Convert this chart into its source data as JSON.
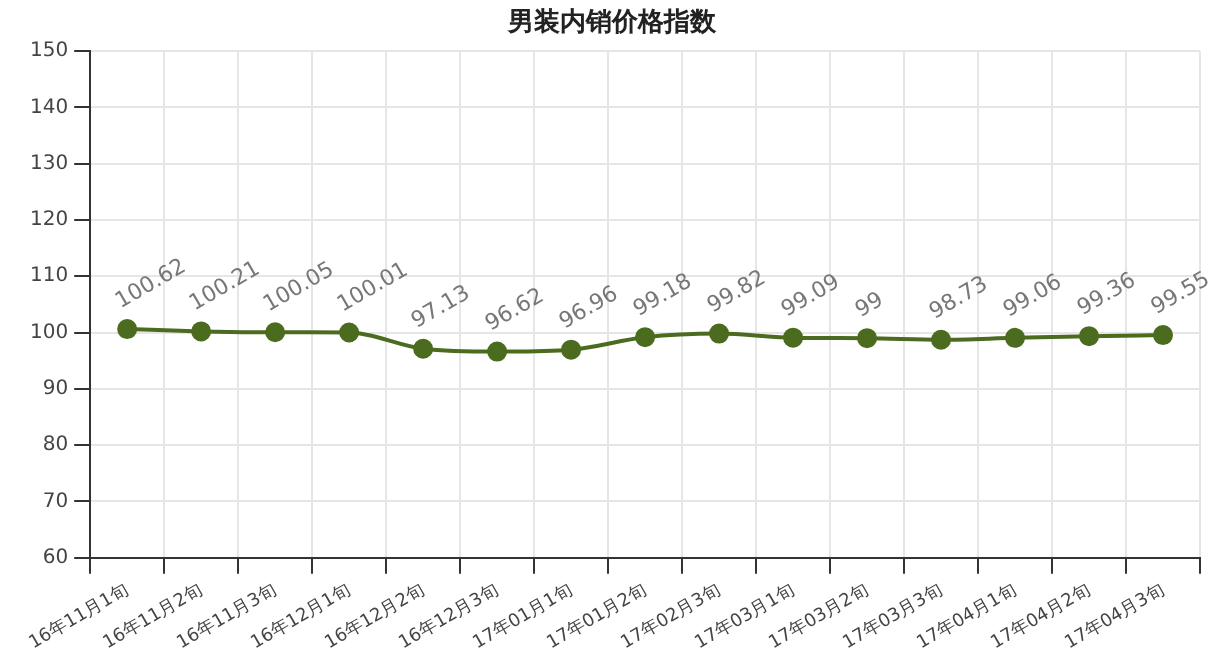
{
  "chart_data": {
    "type": "line",
    "title": "男装内销价格指数",
    "categories": [
      "16年11月1旬",
      "16年11月2旬",
      "16年11月3旬",
      "16年12月1旬",
      "16年12月2旬",
      "16年12月3旬",
      "17年01月1旬",
      "17年01月2旬",
      "17年02月3旬",
      "17年03月1旬",
      "17年03月2旬",
      "17年03月3旬",
      "17年04月1旬",
      "17年04月2旬",
      "17年04月3旬"
    ],
    "series": [
      {
        "color": "#4b6b1e",
        "values": [
          100.62,
          100.21,
          100.05,
          100.01,
          97.13,
          96.62,
          96.96,
          99.18,
          99.82,
          99.09,
          99,
          98.73,
          99.06,
          99.36,
          99.55
        ]
      }
    ],
    "ylim": [
      60,
      150
    ],
    "yticks": [
      60,
      70,
      80,
      90,
      100,
      110,
      120,
      130,
      140,
      150
    ],
    "grid": true,
    "legend": false,
    "marker": "circle",
    "line_style": "solid",
    "data_labels": true
  }
}
